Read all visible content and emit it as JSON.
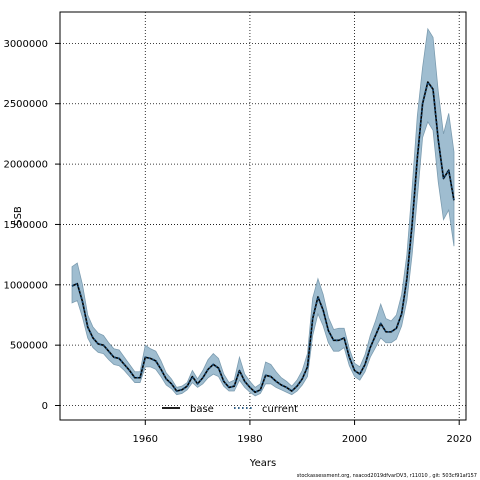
{
  "chart_data": {
    "type": "line",
    "title": "",
    "xlabel": "Years",
    "ylabel": "SSB",
    "xlim": [
      1943.7,
      2021.3
    ],
    "ylim": [
      -120000,
      3260000
    ],
    "x_ticks": [
      1960,
      1980,
      2000,
      2020
    ],
    "y_ticks": [
      0,
      500000,
      1000000,
      1500000,
      2000000,
      2500000,
      3000000
    ],
    "y_tick_labels": [
      "0",
      "500000",
      "1000000",
      "1500000",
      "2000000",
      "2500000",
      "3000000"
    ],
    "x_tick_labels": [
      "1960",
      "1980",
      "2000",
      "2020"
    ],
    "grid": true,
    "legend_position": "bottom-left",
    "legend": [
      {
        "label": "base",
        "style": "solid",
        "color": "#000000"
      },
      {
        "label": "current",
        "style": "dotted",
        "color": "#1a4e7a"
      }
    ],
    "band_color": "#9fbdd0",
    "band_edge_color": "#7c9cb0",
    "x": [
      1946,
      1947,
      1948,
      1949,
      1950,
      1951,
      1952,
      1953,
      1954,
      1955,
      1956,
      1957,
      1958,
      1959,
      1960,
      1961,
      1962,
      1963,
      1964,
      1965,
      1966,
      1967,
      1968,
      1969,
      1970,
      1971,
      1972,
      1973,
      1974,
      1975,
      1976,
      1977,
      1978,
      1979,
      1980,
      1981,
      1982,
      1983,
      1984,
      1985,
      1986,
      1987,
      1988,
      1989,
      1990,
      1991,
      1992,
      1993,
      1994,
      1995,
      1996,
      1997,
      1998,
      1999,
      2000,
      2001,
      2002,
      2003,
      2004,
      2005,
      2006,
      2007,
      2008,
      2009,
      2010,
      2011,
      2012,
      2013,
      2014,
      2015,
      2016,
      2017,
      2018,
      2019
    ],
    "series": [
      {
        "name": "base",
        "values": [
          990000,
          1010000,
          860000,
          650000,
          560000,
          510000,
          500000,
          450000,
          400000,
          390000,
          340000,
          290000,
          230000,
          230000,
          400000,
          390000,
          370000,
          300000,
          220000,
          180000,
          120000,
          130000,
          160000,
          240000,
          180000,
          230000,
          300000,
          340000,
          310000,
          200000,
          150000,
          160000,
          290000,
          200000,
          150000,
          110000,
          130000,
          250000,
          240000,
          200000,
          170000,
          150000,
          120000,
          160000,
          220000,
          320000,
          720000,
          900000,
          790000,
          620000,
          540000,
          540000,
          560000,
          400000,
          290000,
          260000,
          340000,
          480000,
          580000,
          680000,
          610000,
          610000,
          640000,
          760000,
          1050000,
          1500000,
          2050000,
          2500000,
          2680000,
          2620000,
          2200000,
          1880000,
          1950000,
          1700000
        ]
      },
      {
        "name": "current",
        "values": [
          990000,
          1010000,
          860000,
          650000,
          560000,
          510000,
          500000,
          450000,
          400000,
          390000,
          340000,
          290000,
          230000,
          230000,
          400000,
          390000,
          370000,
          300000,
          220000,
          180000,
          120000,
          130000,
          160000,
          240000,
          180000,
          230000,
          300000,
          340000,
          310000,
          200000,
          150000,
          160000,
          290000,
          200000,
          150000,
          110000,
          130000,
          250000,
          240000,
          200000,
          170000,
          150000,
          120000,
          160000,
          220000,
          320000,
          720000,
          900000,
          790000,
          620000,
          540000,
          540000,
          560000,
          400000,
          290000,
          260000,
          340000,
          480000,
          580000,
          680000,
          610000,
          610000,
          640000,
          760000,
          1050000,
          1500000,
          2050000,
          2500000,
          2680000,
          2620000,
          2200000,
          1880000,
          1950000,
          1700000
        ]
      }
    ],
    "band_upper": [
      1150000,
      1180000,
      1000000,
      750000,
      650000,
      600000,
      580000,
      520000,
      470000,
      460000,
      400000,
      340000,
      280000,
      280000,
      500000,
      470000,
      450000,
      370000,
      270000,
      220000,
      150000,
      160000,
      190000,
      290000,
      220000,
      290000,
      380000,
      430000,
      390000,
      260000,
      190000,
      210000,
      400000,
      260000,
      200000,
      150000,
      180000,
      360000,
      340000,
      280000,
      230000,
      200000,
      160000,
      210000,
      290000,
      430000,
      890000,
      1050000,
      920000,
      730000,
      630000,
      640000,
      640000,
      470000,
      350000,
      320000,
      420000,
      580000,
      700000,
      840000,
      720000,
      700000,
      750000,
      920000,
      1250000,
      1800000,
      2400000,
      2800000,
      3120000,
      3050000,
      2600000,
      2250000,
      2420000,
      2100000
    ],
    "band_lower": [
      850000,
      870000,
      730000,
      560000,
      480000,
      440000,
      430000,
      380000,
      340000,
      330000,
      290000,
      240000,
      190000,
      190000,
      320000,
      320000,
      300000,
      240000,
      170000,
      140000,
      90000,
      100000,
      130000,
      190000,
      150000,
      180000,
      230000,
      260000,
      240000,
      160000,
      120000,
      120000,
      210000,
      150000,
      110000,
      80000,
      100000,
      180000,
      180000,
      150000,
      130000,
      110000,
      90000,
      120000,
      170000,
      240000,
      580000,
      760000,
      660000,
      520000,
      450000,
      450000,
      480000,
      330000,
      240000,
      210000,
      280000,
      400000,
      480000,
      560000,
      520000,
      520000,
      550000,
      660000,
      870000,
      1250000,
      1720000,
      2220000,
      2350000,
      2280000,
      1850000,
      1540000,
      1620000,
      1320000
    ]
  },
  "footer": {
    "note": "stockassessment.org, nsacod2019dfvarDV3, r11010 , git: 503cf91af157"
  }
}
